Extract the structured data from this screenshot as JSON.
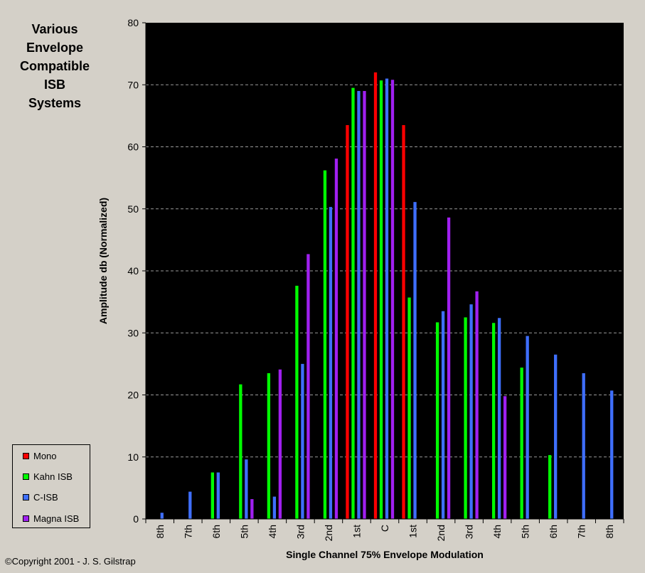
{
  "title_lines": [
    "Various",
    "Envelope",
    "Compatible",
    "ISB",
    "Systems"
  ],
  "copyright": "©Copyright 2001 - J. S. Gilstrap",
  "chart_data": {
    "type": "bar",
    "xlabel": "Single Channel 75% Envelope Modulation",
    "ylabel": "Amplitude db (Normalized)",
    "ylim": [
      0,
      80
    ],
    "yticks": [
      0,
      10,
      20,
      30,
      40,
      50,
      60,
      70,
      80
    ],
    "grid": true,
    "legend_position": "bottom-left",
    "categories": [
      "8th",
      "7th",
      "6th",
      "5th",
      "4th",
      "3rd",
      "2nd",
      "1st",
      "C",
      "1st",
      "2nd",
      "3rd",
      "4th",
      "5th",
      "6th",
      "7th",
      "8th"
    ],
    "series": [
      {
        "name": "Mono",
        "color": "#ff0000",
        "values": [
          null,
          null,
          null,
          null,
          null,
          null,
          null,
          63.5,
          72,
          63.5,
          null,
          null,
          null,
          null,
          null,
          null,
          null
        ]
      },
      {
        "name": "Kahn ISB",
        "color": "#00ff00",
        "values": [
          null,
          null,
          7.5,
          21.7,
          23.5,
          37.6,
          56.2,
          69.5,
          70.7,
          35.7,
          31.7,
          32.5,
          31.6,
          24.4,
          10.3,
          null,
          null
        ]
      },
      {
        "name": "C-ISB",
        "color": "#3f6fff",
        "values": [
          1.0,
          4.4,
          7.5,
          9.6,
          3.6,
          25.0,
          50.3,
          69.0,
          71.0,
          51.1,
          33.5,
          34.6,
          32.4,
          29.5,
          26.5,
          23.5,
          20.7
        ]
      },
      {
        "name": "Magna ISB",
        "color": "#a020f0",
        "values": [
          null,
          null,
          null,
          3.2,
          24.1,
          42.7,
          58.1,
          69.0,
          70.8,
          null,
          48.6,
          36.7,
          19.8,
          null,
          null,
          null,
          null
        ]
      }
    ]
  }
}
